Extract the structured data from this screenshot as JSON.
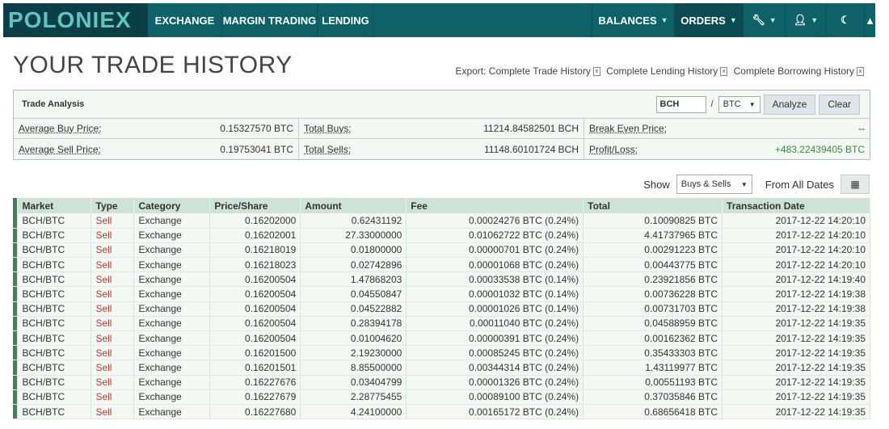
{
  "nav": {
    "logo": "POLONIEX",
    "items": [
      "EXCHANGE",
      "MARGIN TRADING",
      "LENDING"
    ],
    "right": [
      "BALANCES",
      "ORDERS"
    ],
    "icons": [
      "wrench-icon",
      "user-icon",
      "moon-icon",
      "bell-icon"
    ]
  },
  "page": {
    "title": "YOUR TRADE HISTORY"
  },
  "export": {
    "label": "Export:",
    "links": [
      "Complete Trade History",
      "Complete Lending History",
      "Complete Borrowing History"
    ]
  },
  "analysis": {
    "title": "Trade Analysis",
    "base": "BCH",
    "sep": "/",
    "quote": "BTC",
    "analyze": "Analyze",
    "clear": "Clear",
    "rows": [
      [
        {
          "l": "Average Buy Price:",
          "v": "0.15327570 BTC"
        },
        {
          "l": "Total Buys:",
          "v": "11214.84582501 BCH"
        },
        {
          "l": "Break Even Price:",
          "v": "--"
        }
      ],
      [
        {
          "l": "Average Sell Price:",
          "v": "0.19753041 BTC"
        },
        {
          "l": "Total Sells:",
          "v": "11148.60101724 BCH"
        },
        {
          "l": "Profit/Loss:",
          "v": "+483.22439405 BTC"
        }
      ]
    ]
  },
  "filter": {
    "show": "Show",
    "type": "Buys & Sells",
    "dates": "From All Dates"
  },
  "colors": {
    "nav": "#0f6168",
    "sell": "#c0392b",
    "profit": "#3a8a3a"
  },
  "table": {
    "headers": [
      "Market",
      "Type",
      "Category",
      "Price/Share",
      "Amount",
      "Fee",
      "Total",
      "Transaction Date"
    ],
    "rows": [
      [
        "BCH/BTC",
        "Sell",
        "Exchange",
        "0.16202000",
        "0.62431192",
        "0.00024276 BTC (0.24%)",
        "0.10090825 BTC",
        "2017-12-22 14:20:10"
      ],
      [
        "BCH/BTC",
        "Sell",
        "Exchange",
        "0.16202001",
        "27.33000000",
        "0.01062722 BTC (0.24%)",
        "4.41737965 BTC",
        "2017-12-22 14:20:10"
      ],
      [
        "BCH/BTC",
        "Sell",
        "Exchange",
        "0.16218019",
        "0.01800000",
        "0.00000701 BTC (0.24%)",
        "0.00291223 BTC",
        "2017-12-22 14:20:10"
      ],
      [
        "BCH/BTC",
        "Sell",
        "Exchange",
        "0.16218023",
        "0.02742896",
        "0.00001068 BTC (0.24%)",
        "0.00443775 BTC",
        "2017-12-22 14:20:10"
      ],
      [
        "BCH/BTC",
        "Sell",
        "Exchange",
        "0.16200504",
        "1.47868203",
        "0.00033538 BTC (0.14%)",
        "0.23921856 BTC",
        "2017-12-22 14:19:40"
      ],
      [
        "BCH/BTC",
        "Sell",
        "Exchange",
        "0.16200504",
        "0.04550847",
        "0.00001032 BTC (0.14%)",
        "0.00736228 BTC",
        "2017-12-22 14:19:38"
      ],
      [
        "BCH/BTC",
        "Sell",
        "Exchange",
        "0.16200504",
        "0.04522882",
        "0.00001026 BTC (0.14%)",
        "0.00731703 BTC",
        "2017-12-22 14:19:38"
      ],
      [
        "BCH/BTC",
        "Sell",
        "Exchange",
        "0.16200504",
        "0.28394178",
        "0.00011040 BTC (0.24%)",
        "0.04588959 BTC",
        "2017-12-22 14:19:35"
      ],
      [
        "BCH/BTC",
        "Sell",
        "Exchange",
        "0.16200504",
        "0.01004620",
        "0.00000391 BTC (0.24%)",
        "0.00162362 BTC",
        "2017-12-22 14:19:35"
      ],
      [
        "BCH/BTC",
        "Sell",
        "Exchange",
        "0.16201500",
        "2.19230000",
        "0.00085245 BTC (0.24%)",
        "0.35433303 BTC",
        "2017-12-22 14:19:35"
      ],
      [
        "BCH/BTC",
        "Sell",
        "Exchange",
        "0.16201501",
        "8.85500000",
        "0.00344314 BTC (0.24%)",
        "1.43119977 BTC",
        "2017-12-22 14:19:35"
      ],
      [
        "BCH/BTC",
        "Sell",
        "Exchange",
        "0.16227676",
        "0.03404799",
        "0.00001326 BTC (0.24%)",
        "0.00551193 BTC",
        "2017-12-22 14:19:35"
      ],
      [
        "BCH/BTC",
        "Sell",
        "Exchange",
        "0.16227679",
        "2.28775455",
        "0.00089100 BTC (0.24%)",
        "0.37035846 BTC",
        "2017-12-22 14:19:35"
      ],
      [
        "BCH/BTC",
        "Sell",
        "Exchange",
        "0.16227680",
        "4.24100000",
        "0.00165172 BTC (0.24%)",
        "0.68656418 BTC",
        "2017-12-22 14:19:35"
      ]
    ]
  }
}
